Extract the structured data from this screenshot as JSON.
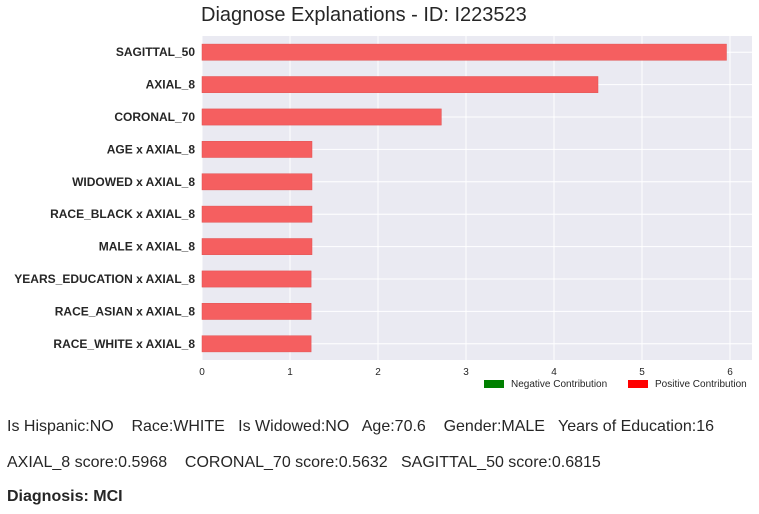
{
  "chart_data": {
    "type": "bar",
    "orientation": "horizontal",
    "title": "Diagnose Explanations - ID: I223523",
    "categories": [
      "SAGITTAL_50",
      "AXIAL_8",
      "CORONAL_70",
      "AGE x AXIAL_8",
      "WIDOWED x AXIAL_8",
      "RACE_BLACK x AXIAL_8",
      "MALE x AXIAL_8",
      "YEARS_EDUCATION x AXIAL_8",
      "RACE_ASIAN x AXIAL_8",
      "RACE_WHITE x AXIAL_8"
    ],
    "values": [
      5.96,
      4.5,
      2.72,
      1.25,
      1.25,
      1.25,
      1.25,
      1.24,
      1.24,
      1.24
    ],
    "xlim": [
      0,
      6.25
    ],
    "xticks": [
      "0",
      "1",
      "2",
      "3",
      "4",
      "5",
      "6"
    ],
    "xtick_values": [
      0,
      1,
      2,
      3,
      4,
      5,
      6
    ],
    "grid": true,
    "legend_position": "bottom-right",
    "legend": [
      {
        "label": "Negative Contribution",
        "color": "#008000"
      },
      {
        "label": "Positive Contribution",
        "color": "#ff0000"
      }
    ],
    "bar_color": "#f55f60",
    "plot_background": "#eaeaf2"
  },
  "info": {
    "line1": "Is Hispanic:NO    Race:WHITE   Is Widowed:NO   Age:70.6    Gender:MALE   Years of Education:16",
    "line2": "AXIAL_8 score:0.5968    CORONAL_70 score:0.5632   SAGITTAL_50 score:0.6815",
    "diagnosis": "Diagnosis: MCI"
  }
}
